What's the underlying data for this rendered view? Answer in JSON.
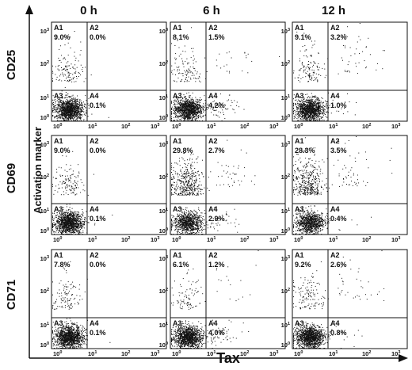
{
  "figure": {
    "column_headers": [
      "0 h",
      "6 h",
      "12 h"
    ],
    "row_headers": [
      "CD25",
      "CD69",
      "CD71"
    ],
    "y_axis_title": "Activation marker",
    "x_axis_title": "Tax"
  },
  "chart_data": [
    {
      "type": "scatter",
      "row": "CD25",
      "column": "0 h",
      "quadrants": [
        {
          "name": "A1",
          "percent": "9.0%"
        },
        {
          "name": "A2",
          "percent": "0.0%"
        },
        {
          "name": "A3",
          "percent": ""
        },
        {
          "name": "A4",
          "percent": "0.1%"
        }
      ],
      "x_ticks": [
        "10^0",
        "10^1",
        "10^2",
        "10^3"
      ],
      "y_ticks": [
        "10^0",
        "10^1",
        "10^2",
        "10^3"
      ],
      "x_scale": "log",
      "y_scale": "log"
    },
    {
      "type": "scatter",
      "row": "CD25",
      "column": "6 h",
      "quadrants": [
        {
          "name": "A1",
          "percent": "8.1%"
        },
        {
          "name": "A2",
          "percent": "1.5%"
        },
        {
          "name": "A3",
          "percent": ""
        },
        {
          "name": "A4",
          "percent": "4.2%"
        }
      ],
      "x_ticks": [
        "10^0",
        "10^1",
        "10^2",
        "10^3"
      ],
      "y_ticks": [
        "10^0",
        "10^1",
        "10^2",
        "10^3"
      ],
      "x_scale": "log",
      "y_scale": "log"
    },
    {
      "type": "scatter",
      "row": "CD25",
      "column": "12 h",
      "quadrants": [
        {
          "name": "A1",
          "percent": "9.1%"
        },
        {
          "name": "A2",
          "percent": "3.2%"
        },
        {
          "name": "A3",
          "percent": ""
        },
        {
          "name": "A4",
          "percent": "1.0%"
        }
      ],
      "x_ticks": [
        "10^0",
        "10^1",
        "10^2",
        "10^3"
      ],
      "y_ticks": [
        "10^0",
        "10^1",
        "10^2",
        "10^3"
      ],
      "x_scale": "log",
      "y_scale": "log"
    },
    {
      "type": "scatter",
      "row": "CD69",
      "column": "0 h",
      "quadrants": [
        {
          "name": "A1",
          "percent": "9.0%"
        },
        {
          "name": "A2",
          "percent": "0.0%"
        },
        {
          "name": "A3",
          "percent": ""
        },
        {
          "name": "A4",
          "percent": "0.1%"
        }
      ],
      "x_ticks": [
        "10^0",
        "10^1",
        "10^2",
        "10^3"
      ],
      "y_ticks": [
        "10^0",
        "10^1",
        "10^2",
        "10^3"
      ],
      "x_scale": "log",
      "y_scale": "log"
    },
    {
      "type": "scatter",
      "row": "CD69",
      "column": "6 h",
      "quadrants": [
        {
          "name": "A1",
          "percent": "29.8%"
        },
        {
          "name": "A2",
          "percent": "2.7%"
        },
        {
          "name": "A3",
          "percent": ""
        },
        {
          "name": "A4",
          "percent": "2.9%"
        }
      ],
      "x_ticks": [
        "10^0",
        "10^1",
        "10^2",
        "10^3"
      ],
      "y_ticks": [
        "10^0",
        "10^1",
        "10^2",
        "10^3"
      ],
      "x_scale": "log",
      "y_scale": "log"
    },
    {
      "type": "scatter",
      "row": "CD69",
      "column": "12 h",
      "quadrants": [
        {
          "name": "A1",
          "percent": "28.3%"
        },
        {
          "name": "A2",
          "percent": "3.5%"
        },
        {
          "name": "A3",
          "percent": ""
        },
        {
          "name": "A4",
          "percent": "0.4%"
        }
      ],
      "x_ticks": [
        "10^0",
        "10^1",
        "10^2",
        "10^3"
      ],
      "y_ticks": [
        "10^0",
        "10^1",
        "10^2",
        "10^3"
      ],
      "x_scale": "log",
      "y_scale": "log"
    },
    {
      "type": "scatter",
      "row": "CD71",
      "column": "0 h",
      "quadrants": [
        {
          "name": "A1",
          "percent": "7.8%"
        },
        {
          "name": "A2",
          "percent": "0.0%"
        },
        {
          "name": "A3",
          "percent": ""
        },
        {
          "name": "A4",
          "percent": "0.1%"
        }
      ],
      "x_ticks": [
        "10^0",
        "10^1",
        "10^2",
        "10^3"
      ],
      "y_ticks": [
        "10^0",
        "10^1",
        "10^2",
        "10^3"
      ],
      "x_scale": "log",
      "y_scale": "log"
    },
    {
      "type": "scatter",
      "row": "CD71",
      "column": "6 h",
      "quadrants": [
        {
          "name": "A1",
          "percent": "6.1%"
        },
        {
          "name": "A2",
          "percent": "1.2%"
        },
        {
          "name": "A3",
          "percent": ""
        },
        {
          "name": "A4",
          "percent": "4.0%"
        }
      ],
      "x_ticks": [
        "10^0",
        "10^1",
        "10^2",
        "10^3"
      ],
      "y_ticks": [
        "10^0",
        "10^1",
        "10^2",
        "10^3"
      ],
      "x_scale": "log",
      "y_scale": "log"
    },
    {
      "type": "scatter",
      "row": "CD71",
      "column": "12 h",
      "quadrants": [
        {
          "name": "A1",
          "percent": "9.2%"
        },
        {
          "name": "A2",
          "percent": "2.6%"
        },
        {
          "name": "A3",
          "percent": ""
        },
        {
          "name": "A4",
          "percent": "0.8%"
        }
      ],
      "x_ticks": [
        "10^0",
        "10^1",
        "10^2",
        "10^3"
      ],
      "y_ticks": [
        "10^0",
        "10^1",
        "10^2",
        "10^3"
      ],
      "x_scale": "log",
      "y_scale": "log"
    }
  ]
}
